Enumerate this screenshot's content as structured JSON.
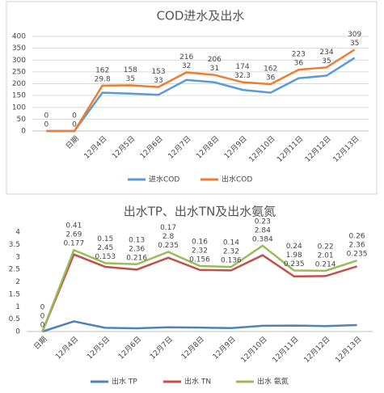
{
  "chart_data": [
    {
      "type": "line",
      "stacked": true,
      "title": "COD进水及出水",
      "categories": [
        null,
        "日期",
        "12月4日",
        "12月5日",
        "12月6日",
        "12月7日",
        "12月8日",
        "12月9日",
        "12月10日",
        "12月11日",
        "12月12日",
        "12月13日"
      ],
      "series": [
        {
          "name": "进水COD",
          "color": "#5b9bd5",
          "values": [
            0,
            0,
            162,
            158,
            153,
            216,
            206,
            174,
            162,
            223,
            234,
            309
          ]
        },
        {
          "name": "出水COD",
          "color": "#ed7d31",
          "values": [
            0,
            0,
            29.8,
            35,
            33,
            32,
            31,
            32.3,
            36,
            36,
            35,
            35
          ]
        }
      ],
      "ylim": [
        0,
        400
      ],
      "yticks": [
        0,
        50,
        100,
        150,
        200,
        250,
        300,
        350,
        400
      ],
      "grid": true,
      "legend": "bottom"
    },
    {
      "type": "line",
      "stacked": true,
      "title": "出水TP、出水TN及出水氨氮",
      "categories": [
        "日期",
        "12月4日",
        "12月5日",
        "12月6日",
        "12月7日",
        "12月8日",
        "12月9日",
        "12月10日",
        "12月11日",
        "12月12日",
        "12月13日"
      ],
      "series": [
        {
          "name": "出水 TP",
          "color": "#4f81bd",
          "values": [
            0,
            0.41,
            0.15,
            0.13,
            0.17,
            0.16,
            0.14,
            0.23,
            0.24,
            0.22,
            0.26
          ]
        },
        {
          "name": "出水 TN",
          "color": "#c0504d",
          "values": [
            0,
            2.69,
            2.45,
            2.36,
            2.8,
            2.32,
            2.32,
            2.84,
            1.98,
            2.01,
            2.36
          ]
        },
        {
          "name": "出水 氨氮",
          "color": "#9bbb59",
          "values": [
            0,
            0.177,
            0.153,
            0.216,
            0.235,
            0.156,
            0.136,
            0.384,
            0.235,
            0.214,
            0.235
          ]
        }
      ],
      "ylim": [
        0,
        4
      ],
      "yticks": [
        0,
        0.5,
        1,
        1.5,
        2,
        2.5,
        3,
        3.5,
        4
      ],
      "grid": false,
      "legend": "bottom"
    }
  ]
}
